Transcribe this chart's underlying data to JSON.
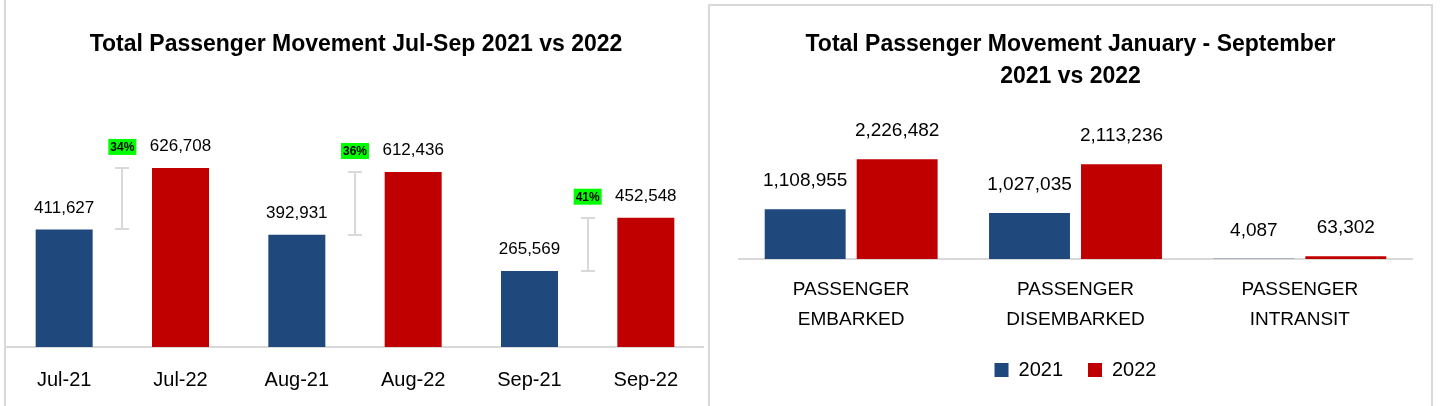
{
  "chart_data": [
    {
      "type": "bar",
      "title": "Total Passenger Movement Jul-Sep 2021 vs 2022",
      "categories": [
        "Jul-21",
        "Jul-22",
        "Aug-21",
        "Aug-22",
        "Sep-21",
        "Sep-22"
      ],
      "values": [
        411627,
        626708,
        392931,
        612436,
        265569,
        452548
      ],
      "colors": [
        "#1f497d",
        "#c00000",
        "#1f497d",
        "#c00000",
        "#1f497d",
        "#c00000"
      ],
      "value_labels": [
        "411,627",
        "626,708",
        "392,931",
        "612,436",
        "265,569",
        "452,548"
      ],
      "annotations": [
        "34%",
        "36%",
        "41%"
      ]
    },
    {
      "type": "bar",
      "title": "Total Passenger Movement January - September 2021 vs 2022",
      "categories": [
        "PASSENGER EMBARKED",
        "PASSENGER DISEMBARKED",
        "PASSENGER INTRANSIT"
      ],
      "series": [
        {
          "name": "2021",
          "color": "#1f497d",
          "values": [
            1108955,
            1027035,
            4087
          ],
          "value_labels": [
            "1,108,955",
            "1,027,035",
            "4,087"
          ]
        },
        {
          "name": "2022",
          "color": "#c00000",
          "values": [
            2226482,
            2113236,
            63302
          ],
          "value_labels": [
            "2,226,482",
            "2,113,236",
            "63,302"
          ]
        }
      ],
      "legend": "bottom"
    }
  ]
}
